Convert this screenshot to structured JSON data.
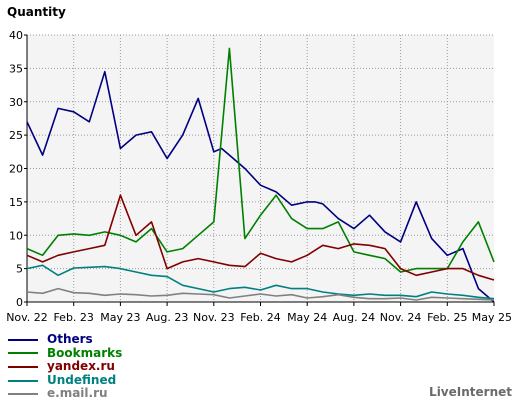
{
  "chart_data": {
    "type": "line",
    "title": "Quantity",
    "ylim": [
      0,
      40
    ],
    "yticks": [
      0,
      5,
      10,
      15,
      20,
      25,
      30,
      35,
      40
    ],
    "xlim": [
      0,
      30
    ],
    "x_ticks": [
      {
        "x": 0,
        "label": "Nov. 22"
      },
      {
        "x": 3,
        "label": "Feb. 23"
      },
      {
        "x": 6,
        "label": "May 23"
      },
      {
        "x": 9,
        "label": "Aug. 23"
      },
      {
        "x": 12,
        "label": "Nov. 23"
      },
      {
        "x": 15,
        "label": "Feb. 24"
      },
      {
        "x": 18,
        "label": "May 24"
      },
      {
        "x": 21,
        "label": "Aug. 24"
      },
      {
        "x": 24,
        "label": "Nov. 24"
      },
      {
        "x": 27,
        "label": "Feb. 25"
      },
      {
        "x": 30,
        "label": "May 25"
      }
    ],
    "grid": true,
    "series": [
      {
        "name": "Others",
        "color": "#000080",
        "x": [
          0,
          1,
          2,
          3,
          4,
          5,
          6,
          7,
          8,
          9,
          10,
          11,
          12,
          12.5,
          13,
          14,
          15,
          16,
          17,
          18,
          18.5,
          19,
          20,
          21,
          22,
          23,
          24,
          25,
          26,
          27,
          28,
          29,
          30
        ],
        "values": [
          27,
          22,
          29,
          28.5,
          27,
          34.5,
          23,
          25,
          25.5,
          21.5,
          25,
          30.5,
          22.5,
          23,
          22,
          20,
          17.5,
          16.5,
          14.5,
          15,
          15,
          14.7,
          12.5,
          11,
          13,
          10.5,
          9,
          15,
          9.5,
          7,
          8,
          2,
          0
        ]
      },
      {
        "name": "Bookmarks",
        "color": "#008000",
        "x": [
          0,
          1,
          2,
          3,
          4,
          5,
          6,
          7,
          8,
          9,
          10,
          11,
          12,
          13,
          14,
          15,
          16,
          17,
          18,
          19,
          20,
          21,
          22,
          23,
          24,
          25,
          26,
          27,
          28,
          29,
          30
        ],
        "values": [
          8,
          7,
          10,
          10.2,
          10,
          10.5,
          10,
          9,
          11,
          7.5,
          8,
          10,
          12,
          38,
          9.5,
          13,
          16,
          12.5,
          11,
          11,
          12,
          7.5,
          7,
          6.5,
          4.5,
          5,
          5,
          5,
          9,
          12,
          6
        ]
      },
      {
        "name": "yandex.ru",
        "color": "#800000",
        "x": [
          0,
          1,
          2,
          3,
          4,
          5,
          6,
          7,
          8,
          9,
          10,
          11,
          12,
          13,
          14,
          15,
          16,
          17,
          18,
          19,
          20,
          21,
          22,
          23,
          24,
          25,
          26,
          27,
          28,
          29,
          30
        ],
        "values": [
          7,
          6,
          7,
          7.5,
          8,
          8.5,
          16,
          10,
          12,
          5,
          6,
          6.5,
          6,
          5.5,
          5.3,
          7.3,
          6.5,
          6,
          7,
          8.5,
          8,
          8.7,
          8.5,
          8,
          5,
          4,
          4.5,
          5,
          5,
          4,
          3.3
        ]
      },
      {
        "name": "Undefined",
        "color": "#008080",
        "x": [
          0,
          1,
          2,
          3,
          4,
          5,
          6,
          7,
          8,
          9,
          10,
          11,
          12,
          13,
          14,
          15,
          16,
          17,
          18,
          19,
          20,
          21,
          22,
          23,
          24,
          25,
          26,
          27,
          28,
          29,
          30
        ],
        "values": [
          5,
          5.5,
          4,
          5.1,
          5.2,
          5.3,
          5,
          4.5,
          4,
          3.8,
          2.5,
          2,
          1.5,
          2,
          2.2,
          1.8,
          2.5,
          2,
          2,
          1.5,
          1.2,
          1,
          1.2,
          1,
          1,
          0.8,
          1.5,
          1.2,
          1,
          0.7,
          0.5
        ]
      },
      {
        "name": "e.mail.ru",
        "color": "#808080",
        "x": [
          0,
          1,
          2,
          3,
          4,
          5,
          6,
          7,
          8,
          9,
          10,
          11,
          12,
          13,
          14,
          15,
          16,
          17,
          18,
          19,
          20,
          21,
          22,
          23,
          24,
          25,
          26,
          27,
          28,
          29,
          30
        ],
        "values": [
          1.5,
          1.3,
          2,
          1.4,
          1.3,
          1,
          1.2,
          1.1,
          0.9,
          1,
          1.3,
          1.2,
          1.1,
          0.6,
          0.9,
          1.2,
          0.9,
          1.1,
          0.6,
          0.8,
          1.1,
          0.7,
          0.5,
          0.5,
          0.6,
          0.3,
          0.7,
          0.6,
          0.5,
          0.4,
          0.3
        ]
      }
    ]
  },
  "footer": {
    "brand": "LiveInternet"
  }
}
